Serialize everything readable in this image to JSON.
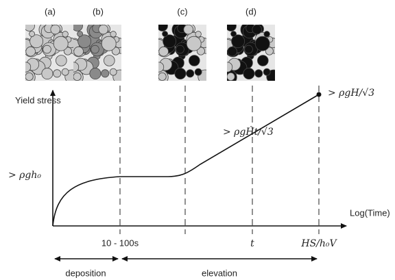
{
  "panels": [
    {
      "label": "(a)"
    },
    {
      "label": "(b)"
    },
    {
      "label": "(c)"
    },
    {
      "label": "(d)"
    }
  ],
  "y_axis": {
    "label": "Yield stress",
    "level": "> ρgh₀"
  },
  "x_axis": {
    "label": "Log(Time)",
    "ticks": [
      "10 - 100s",
      "t",
      "HS/h₀V"
    ]
  },
  "annotations": {
    "mid": "> ρgḢt/√3",
    "end": "> ρgH/√3"
  },
  "phases": {
    "deposition": "deposition",
    "elevation": "elevation"
  }
}
